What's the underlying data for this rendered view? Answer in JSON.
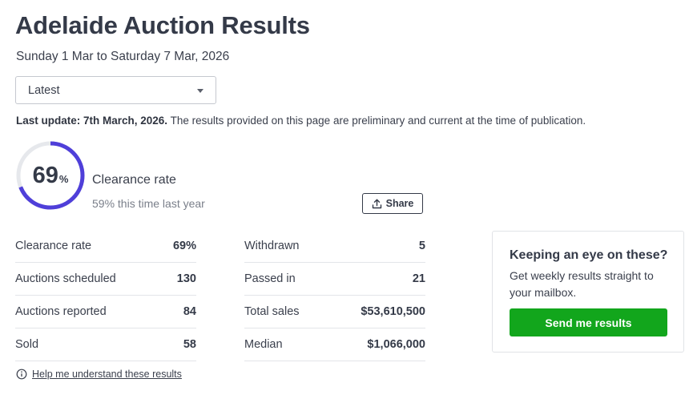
{
  "header": {
    "title": "Adelaide Auction Results",
    "date_range": "Sunday 1 Mar to Saturday 7 Mar, 2026"
  },
  "period_select": {
    "selected": "Latest"
  },
  "update": {
    "label": "Last update: 7th March, 2026.",
    "text": " The results provided on this page are preliminary and current at the time of publication."
  },
  "clearance": {
    "value": "69",
    "unit": "%",
    "fraction": 0.69,
    "label": "Clearance rate",
    "last_year": "59% this time last year",
    "ring_color": "#4f3fd9",
    "track_color": "#e6e8ec"
  },
  "share": {
    "label": "Share"
  },
  "stats_left": [
    {
      "label": "Clearance rate",
      "value": "69%"
    },
    {
      "label": "Auctions scheduled",
      "value": "130"
    },
    {
      "label": "Auctions reported",
      "value": "84"
    },
    {
      "label": "Sold",
      "value": "58"
    }
  ],
  "stats_right": [
    {
      "label": "Withdrawn",
      "value": "5"
    },
    {
      "label": "Passed in",
      "value": "21"
    },
    {
      "label": "Total sales",
      "value": "$53,610,500"
    },
    {
      "label": "Median",
      "value": "$1,066,000"
    }
  ],
  "help": {
    "icon": "info-icon",
    "label": "Help me understand these results"
  },
  "newsletter": {
    "title": "Keeping an eye on these?",
    "text": "Get weekly results straight to your mailbox.",
    "button": "Send me results",
    "button_color": "#12a61c"
  }
}
